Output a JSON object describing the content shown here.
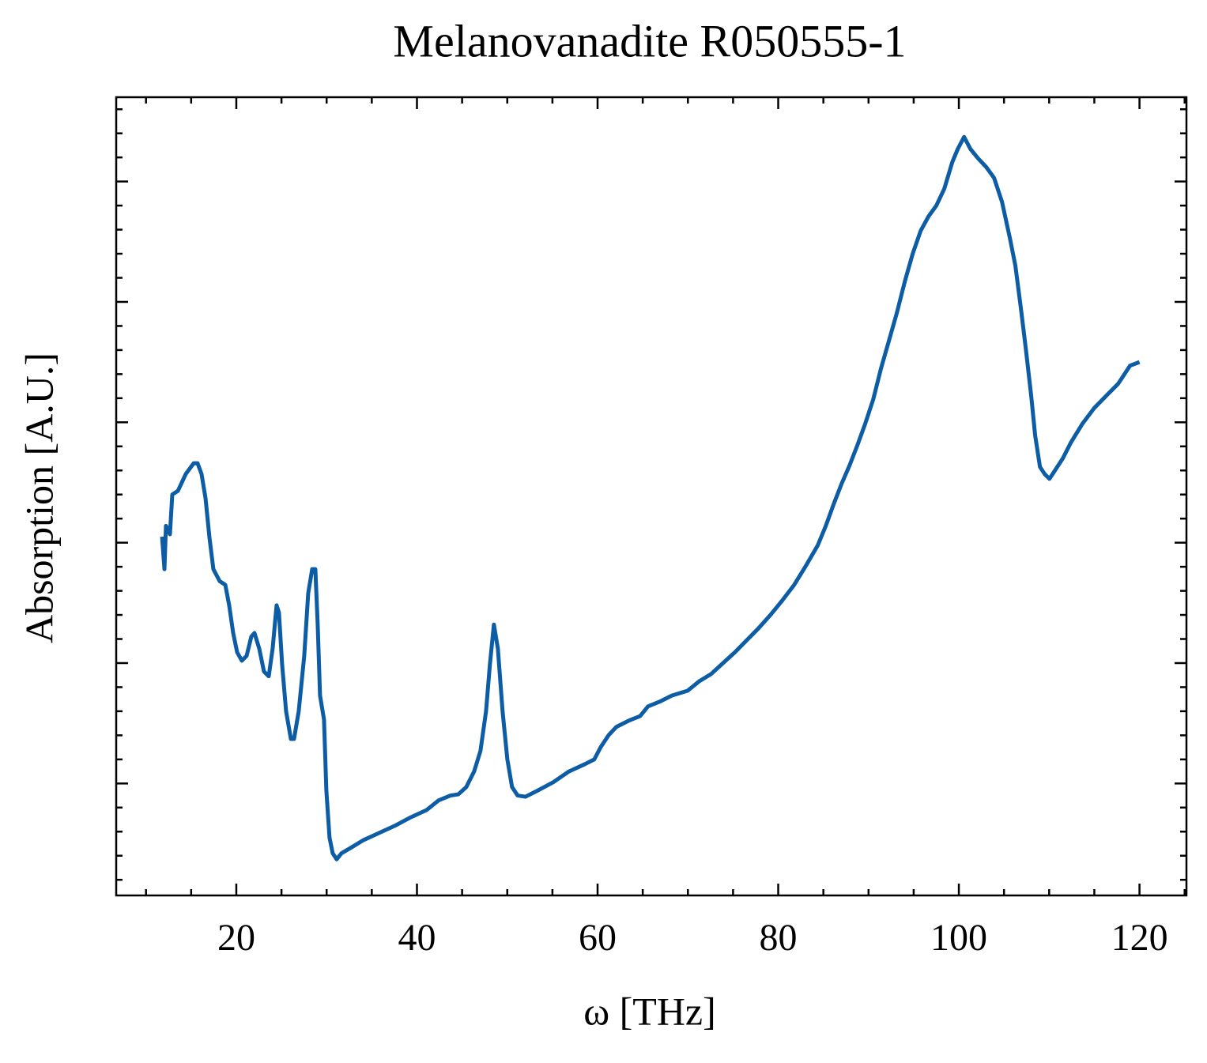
{
  "chart_data": {
    "type": "line",
    "title": "Melanovanadite R050555-1",
    "xlabel": "ω [THz]",
    "ylabel": "Absorption [A.U.]",
    "xlim": [
      6.7,
      125.2
    ],
    "xticks": [
      20,
      40,
      60,
      80,
      100,
      120
    ],
    "xminorticks": [
      10,
      15,
      25,
      30,
      35,
      45,
      50,
      55,
      65,
      70,
      75,
      85,
      90,
      95,
      105,
      110,
      115,
      125
    ],
    "ylim": [
      0.07,
      6.7
    ],
    "yticks": [
      1,
      2,
      3,
      4,
      5,
      6
    ],
    "ytick_labels_shown": false,
    "yminorticks": [
      0.2,
      0.4,
      0.6,
      0.8,
      1.2,
      1.4,
      1.6,
      1.8,
      2.2,
      2.4,
      2.6,
      2.8,
      3.2,
      3.4,
      3.6,
      3.8,
      4.2,
      4.4,
      4.6,
      4.8,
      5.2,
      5.4,
      5.6,
      5.8,
      6.2,
      6.4,
      6.6
    ],
    "series": [
      {
        "color": "#0C5DA5",
        "x": [
          11.78,
          12.04,
          12.21,
          12.65,
          12.91,
          13.53,
          14.4,
          15.28,
          15.71,
          16.15,
          16.59,
          17.03,
          17.46,
          18.16,
          18.78,
          19.21,
          19.65,
          20.09,
          20.61,
          21.14,
          21.66,
          22.01,
          22.54,
          23.06,
          23.59,
          24.02,
          24.46,
          24.72,
          25.07,
          25.51,
          26.04,
          26.39,
          26.91,
          27.52,
          27.96,
          28.4,
          28.75,
          29.01,
          29.27,
          29.71,
          29.97,
          30.32,
          30.67,
          31.11,
          31.64,
          32.77,
          34.09,
          35.84,
          37.59,
          39.34,
          41.08,
          42.4,
          43.71,
          44.58,
          45.46,
          46.33,
          47.03,
          47.65,
          48.08,
          48.52,
          48.96,
          49.48,
          50.01,
          50.53,
          51.15,
          52.02,
          53.33,
          55.08,
          56.83,
          58.58,
          59.63,
          60.33,
          61.21,
          62.08,
          63.4,
          64.71,
          65.58,
          66.89,
          68.21,
          69.96,
          71.27,
          72.58,
          73.89,
          75.21,
          76.52,
          77.83,
          79.14,
          80.45,
          81.77,
          83.08,
          84.39,
          85.27,
          86.14,
          87.02,
          87.89,
          88.77,
          89.64,
          90.52,
          91.39,
          92.27,
          93.14,
          94.02,
          94.89,
          95.77,
          96.64,
          97.51,
          98.39,
          99.27,
          99.88,
          100.58,
          101.28,
          102.15,
          103.03,
          103.9,
          104.78,
          105.65,
          106.26,
          106.88,
          107.4,
          108.01,
          108.45,
          108.98,
          109.5,
          110.03,
          110.64,
          111.51,
          112.39,
          113.7,
          115.01,
          116.32,
          117.64,
          118.95,
          120.0
        ],
        "values": [
          3.05,
          2.78,
          3.14,
          3.07,
          3.4,
          3.43,
          3.57,
          3.66,
          3.66,
          3.57,
          3.37,
          3.04,
          2.78,
          2.68,
          2.65,
          2.48,
          2.25,
          2.09,
          2.02,
          2.06,
          2.22,
          2.25,
          2.12,
          1.93,
          1.89,
          2.12,
          2.48,
          2.42,
          1.99,
          1.6,
          1.37,
          1.37,
          1.6,
          2.06,
          2.58,
          2.78,
          2.78,
          2.32,
          1.73,
          1.53,
          0.94,
          0.55,
          0.42,
          0.37,
          0.42,
          0.47,
          0.53,
          0.59,
          0.65,
          0.72,
          0.78,
          0.86,
          0.9,
          0.91,
          0.97,
          1.1,
          1.27,
          1.6,
          1.99,
          2.32,
          2.12,
          1.6,
          1.2,
          0.97,
          0.9,
          0.89,
          0.94,
          1.01,
          1.1,
          1.16,
          1.2,
          1.3,
          1.4,
          1.47,
          1.52,
          1.56,
          1.64,
          1.68,
          1.73,
          1.77,
          1.85,
          1.91,
          2.0,
          2.09,
          2.19,
          2.29,
          2.4,
          2.52,
          2.65,
          2.81,
          2.98,
          3.14,
          3.32,
          3.49,
          3.64,
          3.81,
          3.99,
          4.19,
          4.45,
          4.68,
          4.91,
          5.17,
          5.4,
          5.59,
          5.71,
          5.8,
          5.94,
          6.16,
          6.27,
          6.37,
          6.27,
          6.19,
          6.12,
          6.03,
          5.83,
          5.53,
          5.3,
          4.94,
          4.62,
          4.22,
          3.89,
          3.63,
          3.57,
          3.53,
          3.6,
          3.7,
          3.83,
          3.99,
          4.12,
          4.22,
          4.32,
          4.47,
          4.5
        ]
      }
    ]
  }
}
